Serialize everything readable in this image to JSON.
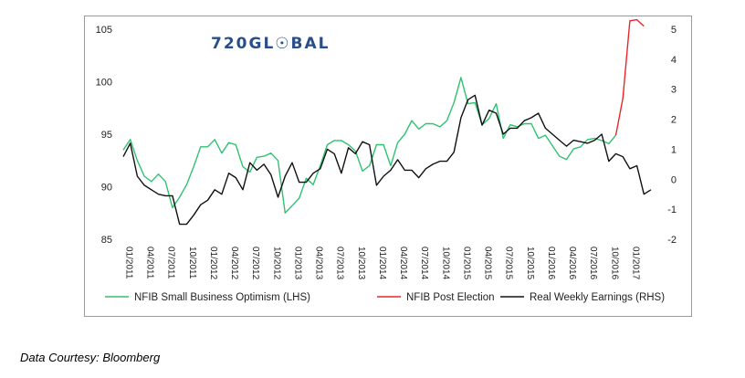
{
  "brand": {
    "logo_text": "720GL☉BAL"
  },
  "caption": "Data Courtesy: Bloomberg",
  "colors": {
    "nfib": "#2fc271",
    "post_election": "#e8262a",
    "earnings": "#111111",
    "logo": "#2a4e88"
  },
  "chart_data": {
    "type": "line",
    "title": "",
    "xlabel": "",
    "ylabel_left": "",
    "ylabel_right": "",
    "y_left_range": [
      85,
      105
    ],
    "y_left_ticks": [
      85,
      90,
      95,
      100,
      105
    ],
    "y_right_range": [
      -2,
      5
    ],
    "y_right_ticks": [
      -2,
      -1,
      0,
      1,
      2,
      3,
      4,
      5
    ],
    "x_ticks": [
      "01/2011",
      "04/2011",
      "07/2011",
      "10/2011",
      "01/2012",
      "04/2012",
      "07/2012",
      "10/2012",
      "01/2013",
      "04/2013",
      "07/2013",
      "10/2013",
      "01/2014",
      "04/2014",
      "07/2014",
      "10/2014",
      "01/2015",
      "04/2015",
      "07/2015",
      "10/2015",
      "01/2016",
      "04/2016",
      "07/2016",
      "10/2016",
      "01/2017"
    ],
    "legend": [
      "NFIB Small Business Optimism (LHS)",
      "NFIB Post Election",
      "Real Weekly Earnings (RHS)"
    ],
    "legend_position": "bottom",
    "grid": false,
    "series": [
      {
        "name": "NFIB Small Business Optimism (LHS)",
        "axis": "left",
        "values": [
          93.5,
          94.5,
          92.5,
          91,
          90.5,
          91.2,
          90.5,
          88,
          89,
          90.2,
          91.9,
          93.8,
          93.8,
          94.5,
          93.2,
          94.2,
          94,
          91.9,
          91.4,
          92.8,
          92.9,
          93.2,
          92.5,
          87.5,
          88.2,
          88.9,
          90.8,
          90.2,
          92,
          94,
          94.4,
          94.4,
          94,
          93.4,
          91.5,
          92,
          94,
          94,
          92,
          94.2,
          95,
          96.3,
          95.5,
          96,
          96,
          95.7,
          96.3,
          98,
          100.4,
          97.9,
          98,
          95.9,
          96.5,
          97.9,
          94.6,
          95.9,
          95.7,
          96,
          96,
          94.6,
          94.9,
          93.9,
          92.9,
          92.6,
          93.6,
          93.8,
          94.5,
          94.6,
          94.4,
          94.1,
          94.9
        ]
      },
      {
        "name": "NFIB Post Election",
        "axis": "left",
        "start_index": 70,
        "values": [
          94.9,
          98.4,
          105.8,
          105.9,
          105.3
        ]
      },
      {
        "name": "Real Weekly Earnings (RHS)",
        "axis": "right",
        "values": [
          0.75,
          1.2,
          0.1,
          -0.2,
          -0.35,
          -0.5,
          -0.55,
          -0.55,
          -1.5,
          -1.5,
          -1.2,
          -0.85,
          -0.7,
          -0.35,
          -0.5,
          0.2,
          0.05,
          -0.35,
          0.55,
          0.3,
          0.5,
          0.15,
          -0.6,
          0.1,
          0.55,
          -0.1,
          -0.1,
          0.2,
          0.35,
          1.0,
          0.85,
          0.2,
          1.05,
          0.85,
          1.25,
          1.15,
          -0.2,
          0.1,
          0.3,
          0.65,
          0.3,
          0.3,
          0.05,
          0.35,
          0.5,
          0.6,
          0.6,
          0.9,
          2.05,
          2.65,
          2.8,
          1.8,
          2.3,
          2.2,
          1.5,
          1.7,
          1.7,
          1.95,
          2.05,
          2.2,
          1.7,
          1.5,
          1.3,
          1.1,
          1.3,
          1.25,
          1.2,
          1.3,
          1.5,
          0.6,
          0.85,
          0.75,
          0.35,
          0.45,
          -0.5,
          -0.35
        ]
      }
    ]
  }
}
